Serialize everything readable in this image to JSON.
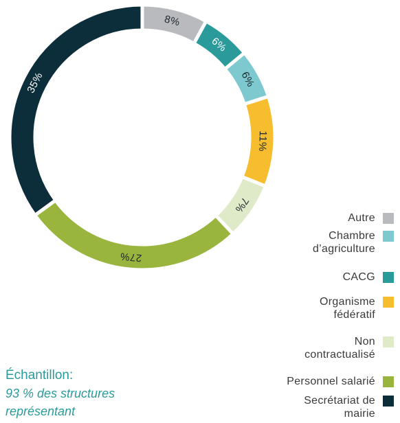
{
  "chart_data": {
    "type": "donut",
    "categories": [
      "Autre",
      "Chambre d’agriculture",
      "CACG",
      "Organisme fédératif",
      "Non contractualisé",
      "Personnel salarié",
      "Secrétariat de mairie"
    ],
    "values": [
      8,
      6,
      6,
      11,
      7,
      27,
      35
    ],
    "value_labels": [
      "8%",
      "6%",
      "6%",
      "11%",
      "7%",
      "27%",
      "35%"
    ],
    "colors": [
      "#b9babe",
      "#7ec8cf",
      "#2a9a9a",
      "#f6bd2f",
      "#dfeac9",
      "#9ab53e",
      "#0c2d3a"
    ],
    "note": {
      "title": "Échantillon:",
      "text": "93 % des structures représentant"
    }
  }
}
